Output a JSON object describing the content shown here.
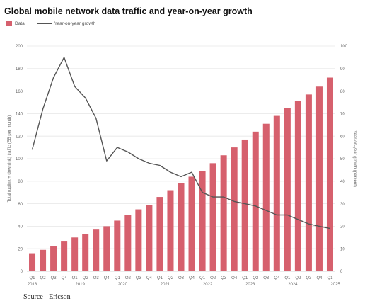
{
  "title": "Global mobile network data traffic and year-on-year growth",
  "legend": {
    "bars": "Data",
    "line": "Year-on-year growth"
  },
  "source": "Source - Ericson",
  "colors": {
    "bar": "#d6606d",
    "line": "#555555",
    "grid": "#e6e6e6",
    "text": "#666666"
  },
  "chart_data": {
    "type": "bar",
    "title": "Global mobile network data traffic and year-on-year growth",
    "ylabel": "Total (uplink + downlink) traffic (EB per month)",
    "y2label": "Year-on-year growth (percent)",
    "ylim": [
      0,
      200
    ],
    "y2lim": [
      0,
      100
    ],
    "yticks": [
      0,
      20,
      40,
      60,
      80,
      100,
      120,
      140,
      160,
      180,
      200
    ],
    "y2ticks": [
      0,
      10,
      20,
      30,
      40,
      50,
      60,
      70,
      80,
      90,
      100
    ],
    "grid": true,
    "legend_position": "top-left",
    "categories": [
      "Q1",
      "Q2",
      "Q3",
      "Q4",
      "Q1",
      "Q2",
      "Q3",
      "Q4",
      "Q1",
      "Q2",
      "Q3",
      "Q4",
      "Q1",
      "Q2",
      "Q3",
      "Q4",
      "Q1",
      "Q2",
      "Q3",
      "Q4",
      "Q1",
      "Q2",
      "Q3",
      "Q4",
      "Q1",
      "Q2",
      "Q3",
      "Q4",
      "Q1"
    ],
    "years": [
      {
        "label": "2018",
        "index": 0
      },
      {
        "label": "2019",
        "index": 4
      },
      {
        "label": "2020",
        "index": 8
      },
      {
        "label": "2021",
        "index": 12
      },
      {
        "label": "2022",
        "index": 16
      },
      {
        "label": "2023",
        "index": 20
      },
      {
        "label": "2024",
        "index": 24
      },
      {
        "label": "2025",
        "index": 28
      }
    ],
    "series": [
      {
        "name": "Data",
        "type": "bar",
        "axis": "left",
        "values": [
          16,
          19,
          22,
          27,
          30,
          33,
          37,
          40,
          45,
          50,
          55,
          59,
          66,
          72,
          78,
          84,
          89,
          96,
          103,
          110,
          117,
          124,
          131,
          138,
          145,
          151,
          157,
          164,
          172
        ]
      },
      {
        "name": "Year-on-year growth",
        "type": "line",
        "axis": "right",
        "values": [
          54,
          72,
          86,
          95,
          82,
          77,
          68,
          49,
          55,
          53,
          50,
          48,
          47,
          44,
          42,
          44,
          35,
          33,
          33,
          31,
          30,
          29,
          27,
          25,
          25,
          23,
          21,
          20,
          19
        ]
      }
    ]
  }
}
